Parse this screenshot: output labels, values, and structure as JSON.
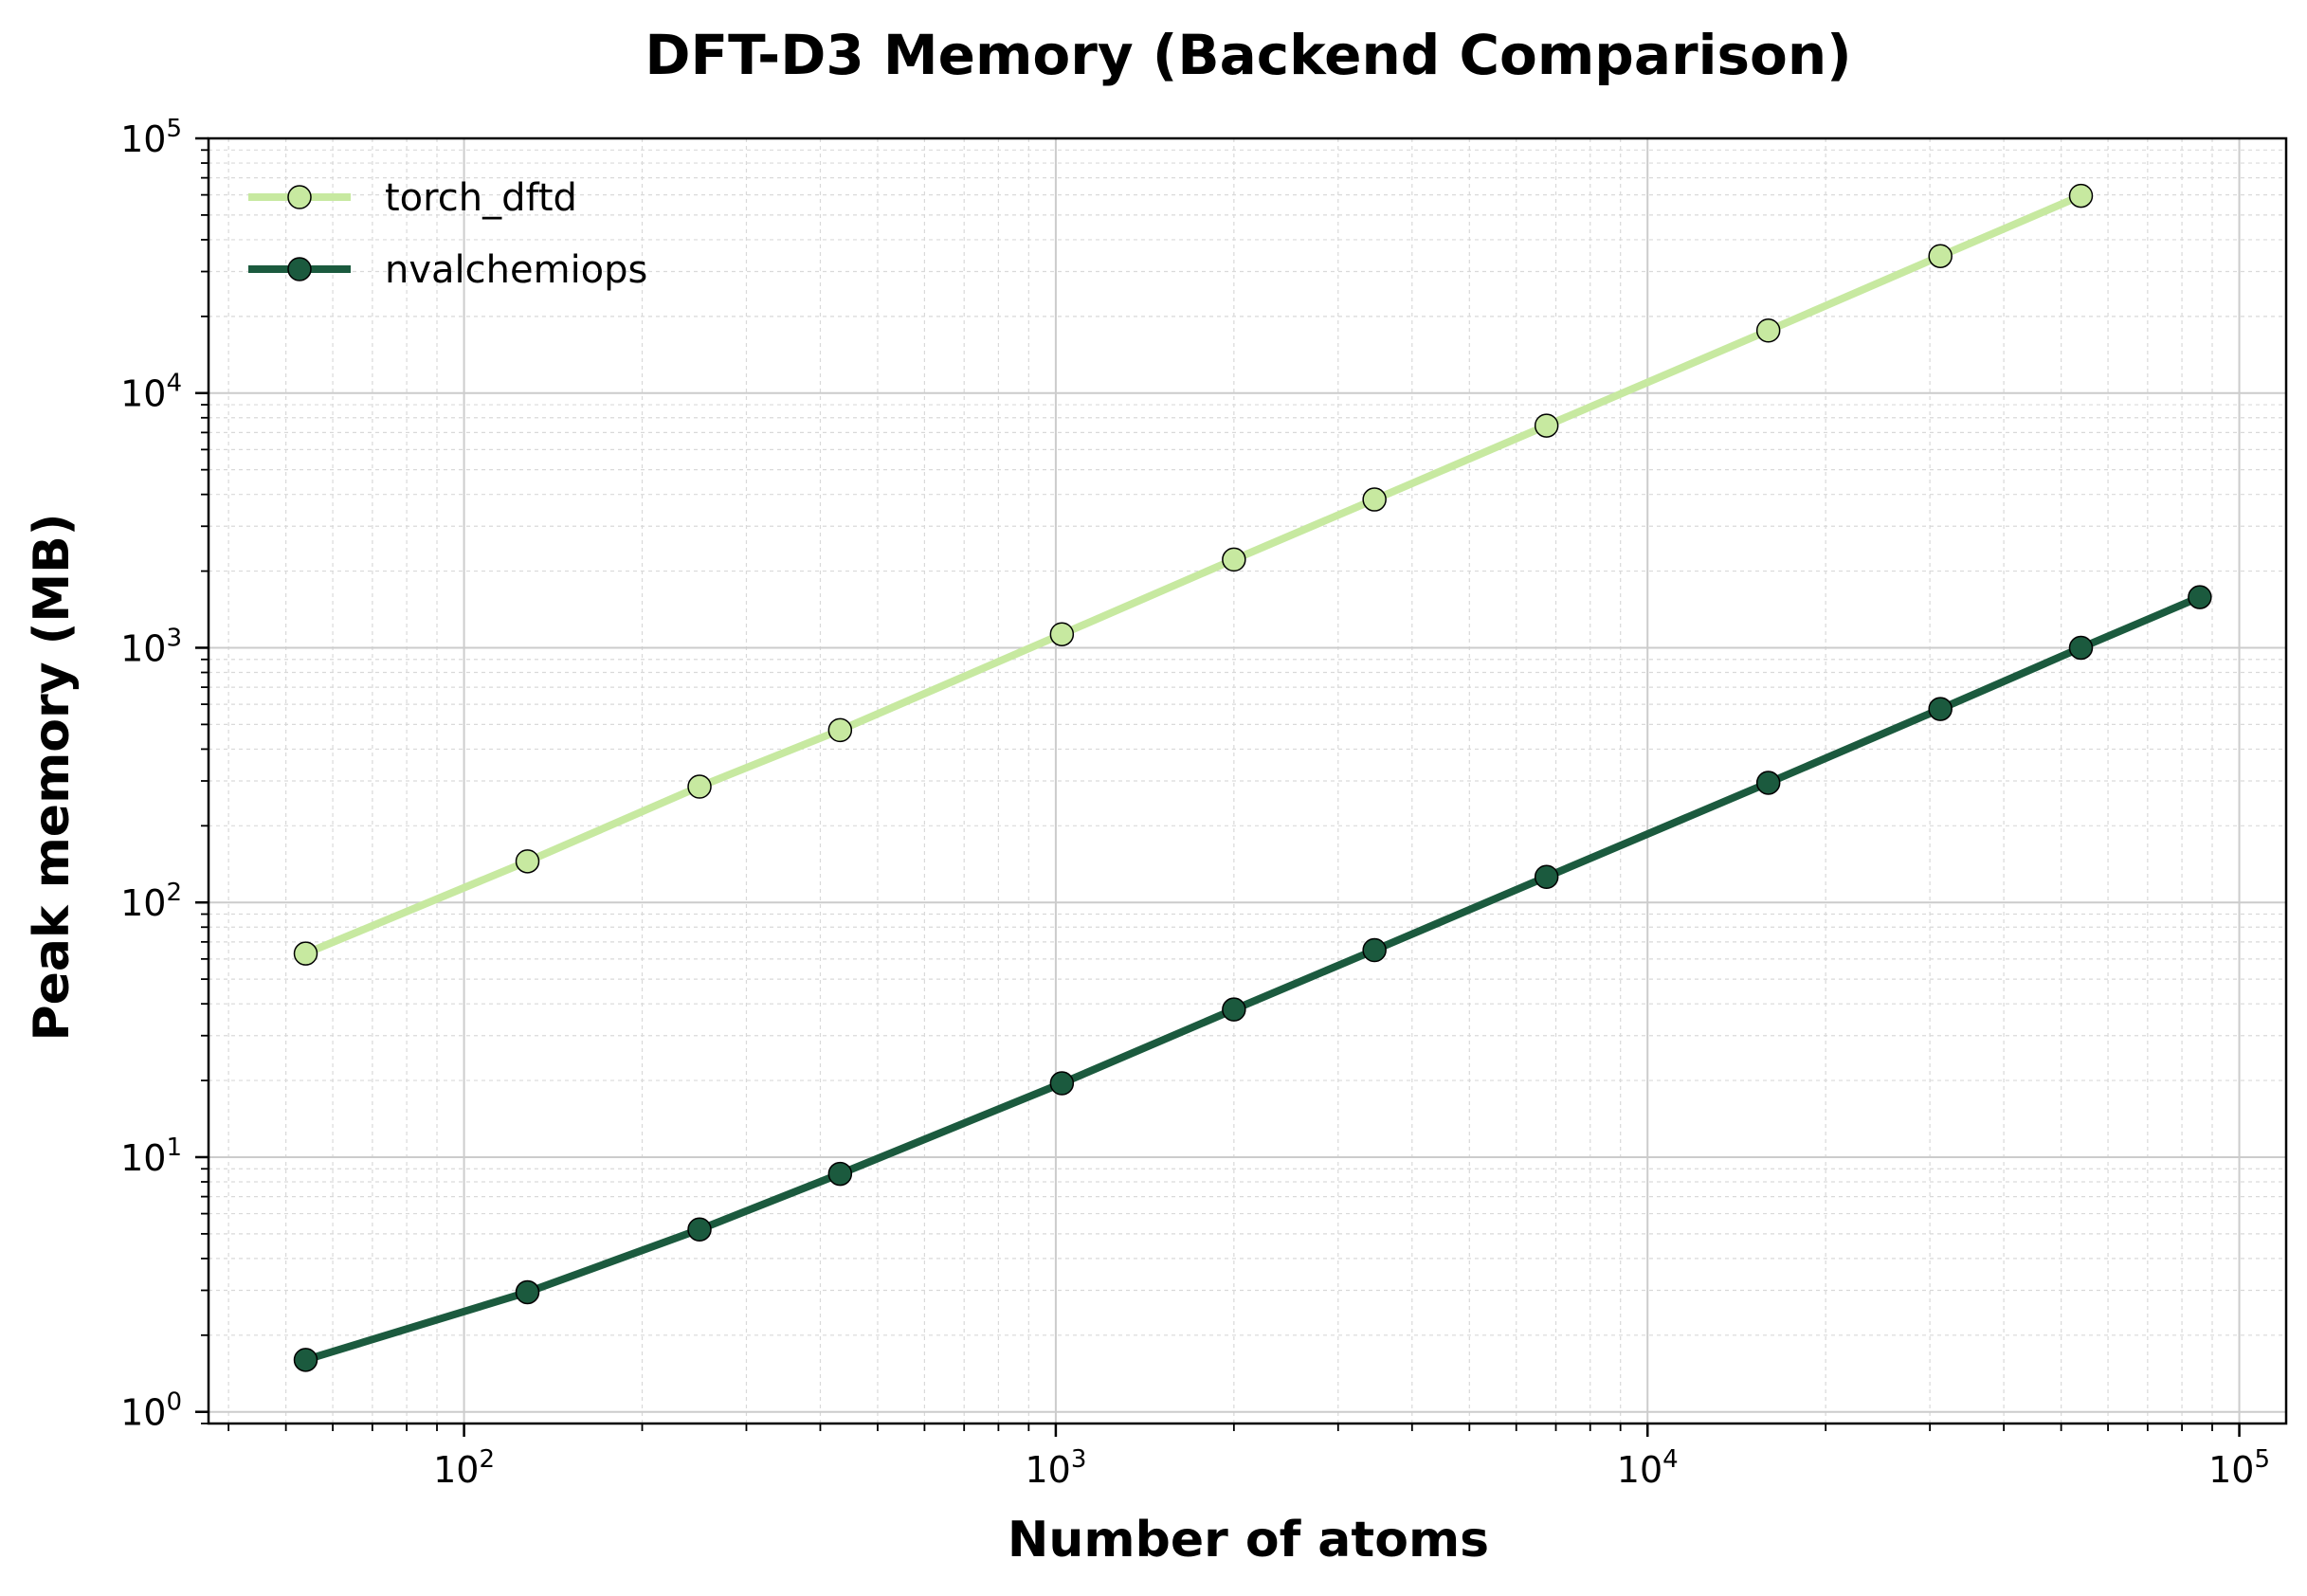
{
  "chart_data": {
    "type": "line",
    "title": "DFT-D3 Memory (Backend Comparison)",
    "xlabel": "Number of atoms",
    "ylabel": "Peak memory (MB)",
    "xscale": "log",
    "yscale": "log",
    "xlim": [
      37,
      120000
    ],
    "ylim": [
      0.9,
      100000
    ],
    "x_ticks": [
      {
        "base": "10",
        "exp": "2",
        "value": 100
      },
      {
        "base": "10",
        "exp": "3",
        "value": 1000
      },
      {
        "base": "10",
        "exp": "4",
        "value": 10000
      },
      {
        "base": "10",
        "exp": "5",
        "value": 100000
      }
    ],
    "y_ticks": [
      {
        "base": "10",
        "exp": "0",
        "value": 1
      },
      {
        "base": "10",
        "exp": "1",
        "value": 10
      },
      {
        "base": "10",
        "exp": "2",
        "value": 100
      },
      {
        "base": "10",
        "exp": "3",
        "value": 1000
      },
      {
        "base": "10",
        "exp": "4",
        "value": 10000
      },
      {
        "base": "10",
        "exp": "5",
        "value": 100000
      }
    ],
    "grid": true,
    "legend_position": "top-left",
    "series": [
      {
        "name": "torch_dftd",
        "color": "#c7e9a0",
        "x": [
          54,
          128,
          250,
          432,
          1024,
          2000,
          3456,
          6750,
          16000,
          31250,
          54000
        ],
        "y": [
          63,
          145,
          285,
          475,
          1130,
          2220,
          3820,
          7450,
          17600,
          34500,
          59500
        ]
      },
      {
        "name": "nvalchemiops",
        "color": "#1b5a3e",
        "x": [
          54,
          128,
          250,
          432,
          1024,
          2000,
          3456,
          6750,
          16000,
          31250,
          54000,
          85750
        ],
        "y": [
          1.6,
          2.95,
          5.2,
          8.6,
          19.5,
          38,
          65,
          126,
          295,
          575,
          1000,
          1580
        ]
      }
    ]
  }
}
